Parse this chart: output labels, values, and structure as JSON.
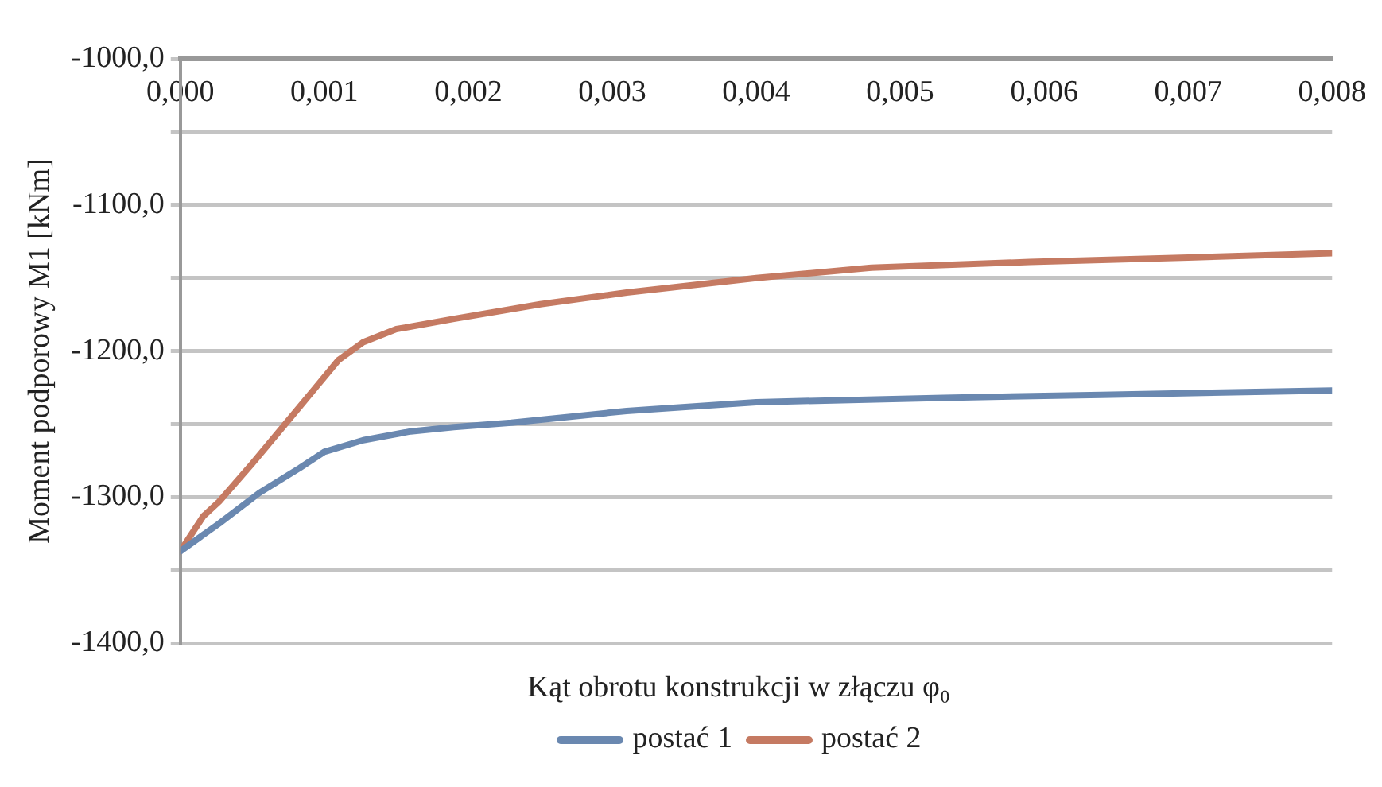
{
  "chart_data": {
    "type": "line",
    "xlabel": "Kąt obrotu konstrukcji w złączu φ₀",
    "ylabel": "Moment podporowy M1 [kNm]",
    "xlim": [
      0,
      0.008
    ],
    "xticks": [
      {
        "value": 0,
        "label": "0,000"
      },
      {
        "value": 0.001,
        "label": "0,001"
      },
      {
        "value": 0.002,
        "label": "0,002"
      },
      {
        "value": 0.003,
        "label": "0,003"
      },
      {
        "value": 0.004,
        "label": "0,004"
      },
      {
        "value": 0.005,
        "label": "0,005"
      },
      {
        "value": 0.006,
        "label": "0,006"
      },
      {
        "value": 0.007,
        "label": "0,007"
      },
      {
        "value": 0.008,
        "label": "0,008"
      }
    ],
    "ylim": [
      -1400,
      -1000
    ],
    "yticks": [
      {
        "value": -1400,
        "label": "-1400,0"
      },
      {
        "value": -1350,
        "label": null
      },
      {
        "value": -1300,
        "label": "-1300,0"
      },
      {
        "value": -1250,
        "label": null
      },
      {
        "value": -1200,
        "label": "-1200,0"
      },
      {
        "value": -1150,
        "label": null
      },
      {
        "value": -1100,
        "label": "-1100,0"
      },
      {
        "value": -1050,
        "label": null
      },
      {
        "value": -1000,
        "label": "-1000,0"
      }
    ],
    "grid": "y",
    "legend": "bottom",
    "marker": "none",
    "line_style": "solid",
    "series": [
      {
        "name": "postać 1",
        "color": "#6a88b0",
        "x": [
          0,
          0.00027,
          0.00055,
          0.00083,
          0.001,
          0.00127,
          0.0016,
          0.0019,
          0.0023,
          0.0031,
          0.004,
          0.0053,
          0.0064,
          0.008
        ],
        "values": [
          -1337,
          -1318,
          -1297,
          -1280,
          -1269,
          -1261,
          -1255,
          -1252,
          -1249,
          -1241,
          -1235,
          -1232,
          -1230,
          -1227
        ]
      },
      {
        "name": "postać 2",
        "color": "#c57a62",
        "x": [
          0,
          0.00016,
          0.00027,
          0.0005,
          0.00072,
          0.00094,
          0.0011,
          0.00127,
          0.0015,
          0.0019,
          0.0025,
          0.0031,
          0.004,
          0.0048,
          0.0059,
          0.007,
          0.008
        ],
        "values": [
          -1337,
          -1313,
          -1303,
          -1277,
          -1251,
          -1225,
          -1206,
          -1194,
          -1185,
          -1178,
          -1168,
          -1160,
          -1150,
          -1143,
          -1139,
          -1136,
          -1133
        ]
      }
    ]
  }
}
